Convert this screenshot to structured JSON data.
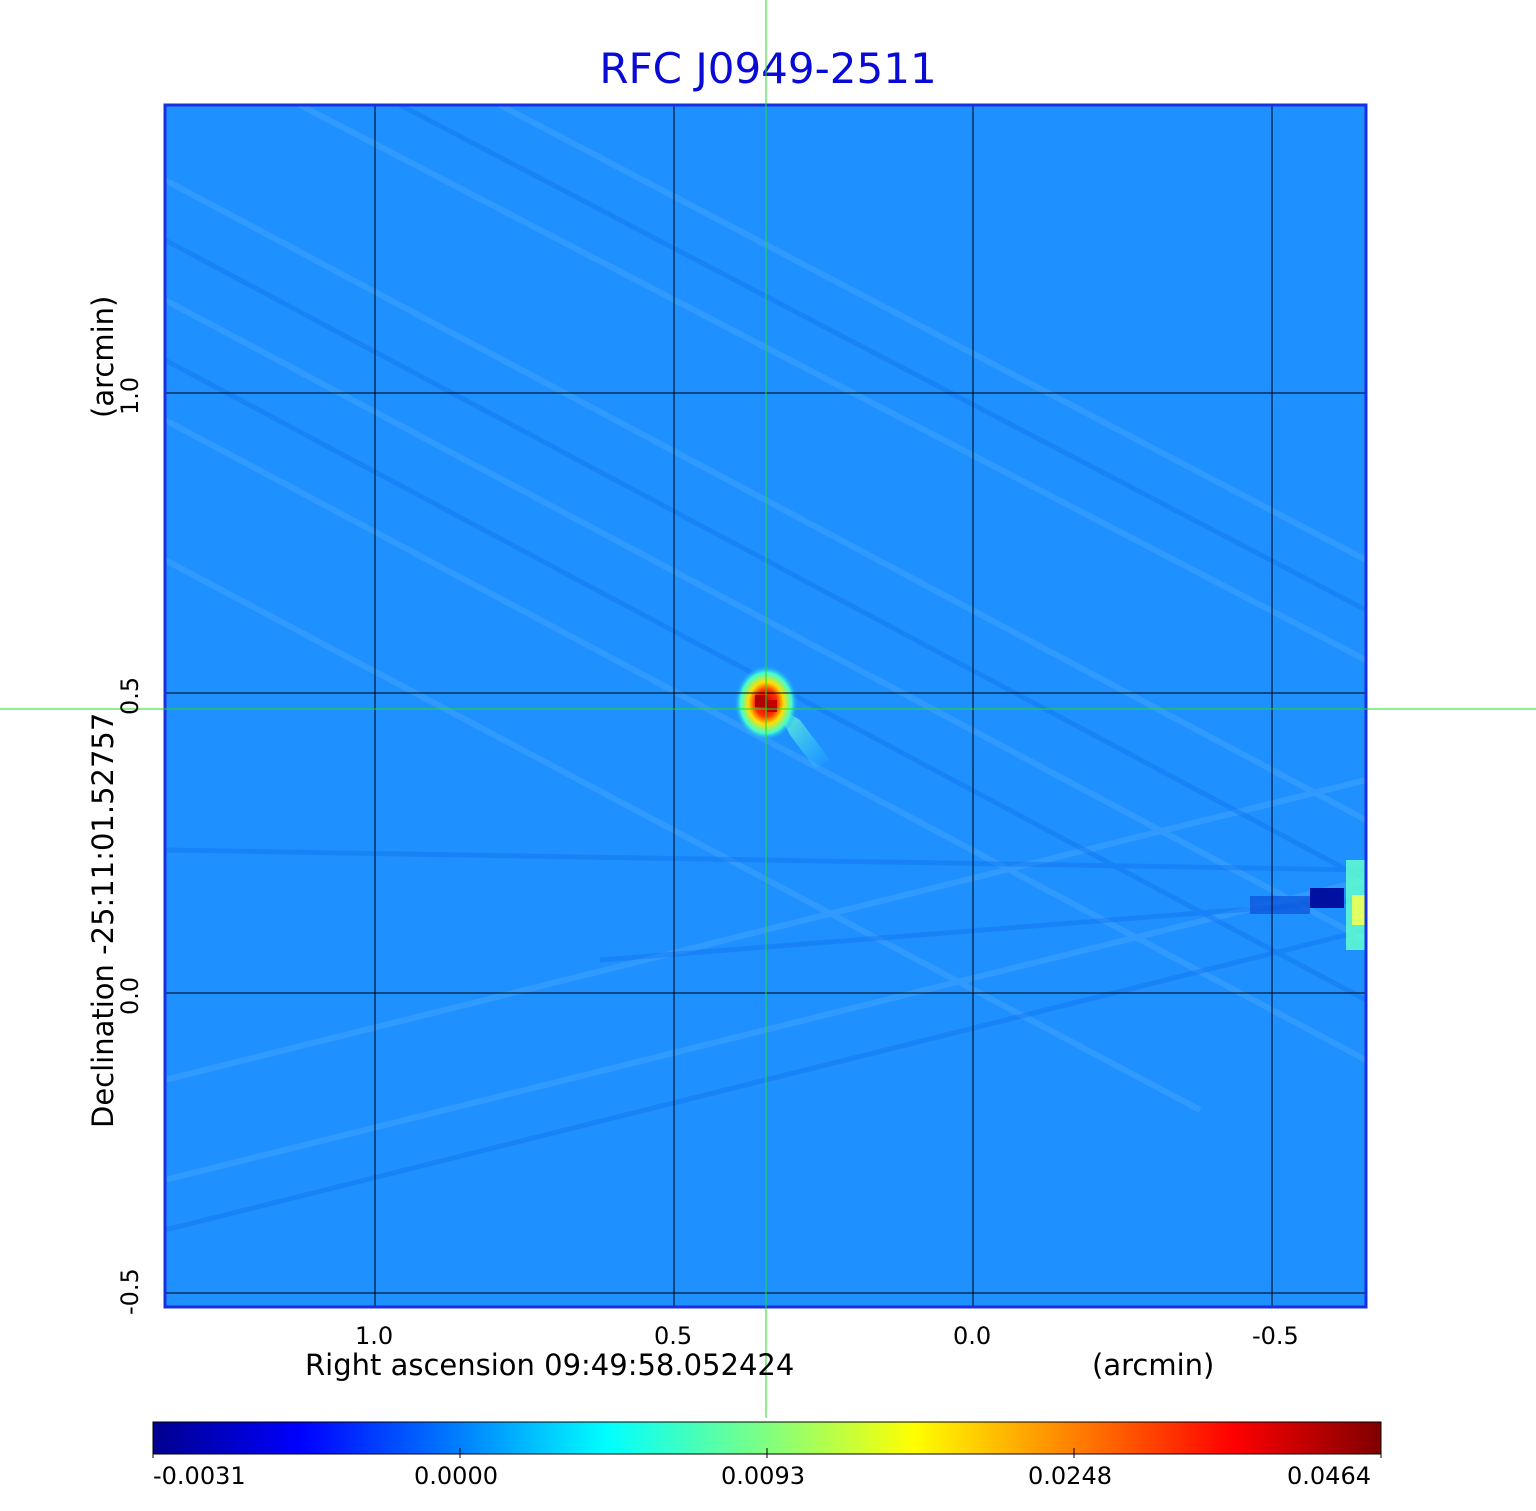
{
  "title": "RFC J0949-2511",
  "x_axis": {
    "label": "Right ascension  09:49:58.052424",
    "unit": "(arcmin)",
    "ticks": [
      {
        "value": 1.0,
        "label": "1.0"
      },
      {
        "value": 0.5,
        "label": "0.5"
      },
      {
        "value": 0.0,
        "label": "0.0"
      },
      {
        "value": -0.5,
        "label": "-0.5"
      }
    ]
  },
  "y_axis": {
    "label": "Declination  -25:11:01.52757",
    "unit": "(arcmin)",
    "ticks": [
      {
        "value": 1.0,
        "label": "1.0"
      },
      {
        "value": 0.5,
        "label": "0.5"
      },
      {
        "value": 0.0,
        "label": "0.0"
      },
      {
        "value": -0.5,
        "label": "-0.5"
      }
    ]
  },
  "colorbar": {
    "ticks": [
      "-0.0031",
      "0.0000",
      "0.0093",
      "0.0248",
      "0.0464"
    ],
    "colors": [
      "#00008f",
      "#0000ff",
      "#0080ff",
      "#00ffff",
      "#80ff80",
      "#ffff00",
      "#ff8000",
      "#ff0000",
      "#800000"
    ]
  },
  "colors": {
    "background_map": "#1e90ff",
    "frame": "#1a2fe0",
    "grid": "#000000",
    "crosshair": "#22dd22",
    "title": "#0a0ad6"
  }
}
